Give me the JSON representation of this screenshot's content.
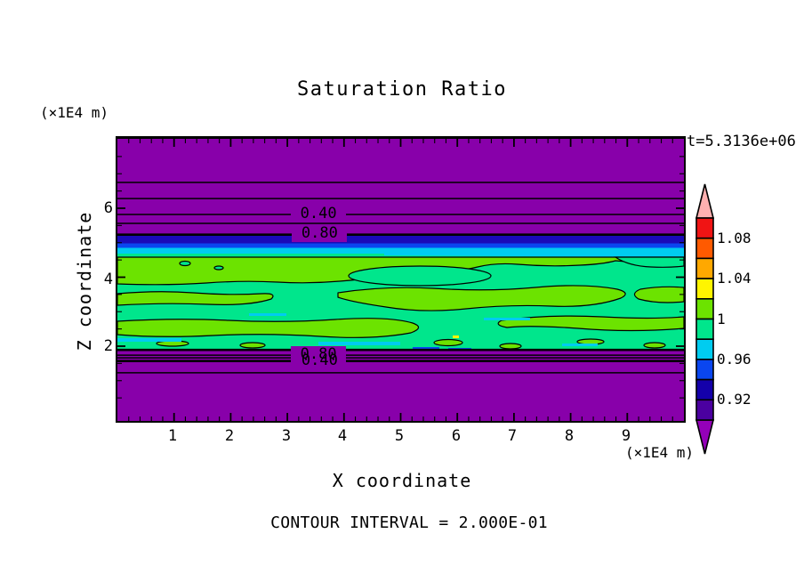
{
  "title": "Saturation Ratio",
  "timestamp": "t=5.3136e+06",
  "z_axis": {
    "label": "Z coordinate",
    "units": "(×1E4 m)",
    "ticks": [
      "6",
      "4",
      "2"
    ]
  },
  "x_axis": {
    "label": "X coordinate",
    "units": "(×1E4 m)",
    "ticks": [
      "1",
      "2",
      "3",
      "4",
      "5",
      "6",
      "7",
      "8",
      "9"
    ]
  },
  "footer": {
    "contour_note": "CONTOUR INTERVAL = 2.000E-01"
  },
  "palette": {
    "purple": "#8800AA",
    "navy": "#1A0AB8",
    "blue": "#0A46F0",
    "cyan": "#00CCF0",
    "springgreen": "#00E68C",
    "chartreuse": "#6CE300",
    "yellow": "#FFF500",
    "orange": "#FFA800",
    "orangered": "#FF5A00",
    "red": "#F01414",
    "pink": "#FFB0B0",
    "purpleArrow": "#9400B8",
    "indigo": "#4B00A0",
    "navybar": "#1400AA",
    "black": "#000000"
  },
  "chart_data": {
    "type": "heatmap",
    "subtype": "filled-contour",
    "title": "Saturation Ratio",
    "xlabel": "X coordinate",
    "ylabel": "Z coordinate",
    "x_units": "(×1E4 m)",
    "z_units": "(×1E4 m)",
    "time_annotation": "t=5.3136e+06",
    "contour_interval": "2.000E-01",
    "x_range": [
      0,
      10
    ],
    "z_range": [
      0,
      8.2
    ],
    "x_major_tick_step": 1,
    "x_minor_tick_step": 0.2,
    "z_major_ticks": [
      2,
      4,
      6
    ],
    "z_minor_tick_step": 0.5,
    "grid": false,
    "legend_position": "right-colorbar",
    "field_bands": [
      {
        "z_from": 5.25,
        "z_to": 8.2,
        "saturation_ratio": "< 0.90",
        "color": "purple"
      },
      {
        "z_from": 5.0,
        "z_to": 5.25,
        "saturation_ratio": "0.90-0.94",
        "color": "navy"
      },
      {
        "z_from": 4.86,
        "z_to": 5.0,
        "saturation_ratio": "0.94-0.96",
        "color": "blue"
      },
      {
        "z_from": 4.68,
        "z_to": 4.86,
        "saturation_ratio": "0.96-0.98",
        "color": "cyan"
      },
      {
        "z_from": 1.9,
        "z_to": 4.68,
        "saturation_ratio": "0.98-1.02",
        "color": "springgreen-chartreuse-mottle"
      },
      {
        "z_from": 0.0,
        "z_to": 1.9,
        "saturation_ratio": "< 0.90",
        "color": "purple"
      }
    ],
    "contour_lines": [
      {
        "z": 6.75
      },
      {
        "z": 6.28
      },
      {
        "z": 5.82,
        "label": "0.40",
        "label_x": 3.55,
        "bg": true
      },
      {
        "z": 5.56
      },
      {
        "z": 5.25,
        "label": "0.80",
        "label_x": 3.57,
        "bg": true
      },
      {
        "z": 1.74,
        "label": "0.80",
        "label_x": 3.55,
        "bg": true
      },
      {
        "z": 1.66
      },
      {
        "z": 1.57,
        "label": "0.40",
        "label_x": 3.57,
        "bg": false,
        "thick": true
      },
      {
        "z": 1.23
      }
    ],
    "colorbar": {
      "over_arrow_color": "#FFB0B0",
      "under_arrow_color": "#9400B8",
      "segments": [
        {
          "color": "#F01414",
          "range": [
            1.08,
            1.1
          ],
          "label": "1.08"
        },
        {
          "color": "#FF5A00",
          "range": [
            1.06,
            1.08
          ]
        },
        {
          "color": "#FFA800",
          "range": [
            1.04,
            1.06
          ],
          "label": "1.04"
        },
        {
          "color": "#FFF500",
          "range": [
            1.02,
            1.04
          ]
        },
        {
          "color": "#6CE300",
          "range": [
            1.0,
            1.02
          ],
          "label": "1"
        },
        {
          "color": "#00E68C",
          "range": [
            0.98,
            1.0
          ]
        },
        {
          "color": "#00CCF0",
          "range": [
            0.96,
            0.98
          ],
          "label": "0.96"
        },
        {
          "color": "#0A46F0",
          "range": [
            0.94,
            0.96
          ]
        },
        {
          "color": "#1400AA",
          "range": [
            0.92,
            0.94
          ],
          "label": "0.92"
        },
        {
          "color": "#4B00A0",
          "range": [
            0.9,
            0.92
          ]
        }
      ]
    }
  }
}
